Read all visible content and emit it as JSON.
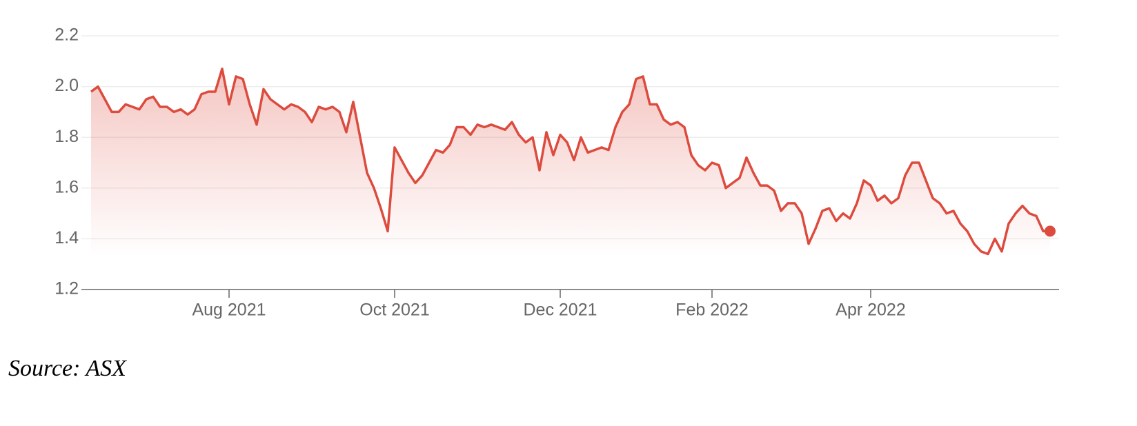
{
  "chart_data": {
    "type": "line",
    "source": "Source: ASX",
    "color": "#dd4b3e",
    "grid": true,
    "ylim": [
      1.2,
      2.2
    ],
    "yticks": [
      1.2,
      1.4,
      1.6,
      1.8,
      {
        "value": 2,
        "label": "2.0"
      },
      2.2
    ],
    "categories": [
      null,
      null,
      null,
      null,
      null,
      null,
      null,
      null,
      null,
      null,
      null,
      null,
      null,
      null,
      null,
      null,
      null,
      null,
      null,
      null,
      "Aug 2021",
      null,
      null,
      null,
      null,
      null,
      null,
      null,
      null,
      null,
      null,
      null,
      null,
      null,
      null,
      null,
      null,
      null,
      null,
      null,
      null,
      null,
      null,
      null,
      "Oct 2021",
      null,
      null,
      null,
      null,
      null,
      null,
      null,
      null,
      null,
      null,
      null,
      null,
      null,
      null,
      null,
      null,
      null,
      null,
      null,
      null,
      null,
      null,
      null,
      "Dec 2021",
      null,
      null,
      null,
      null,
      null,
      null,
      null,
      null,
      null,
      null,
      null,
      null,
      null,
      null,
      null,
      null,
      null,
      null,
      null,
      null,
      null,
      "Feb 2022",
      null,
      null,
      null,
      null,
      null,
      null,
      null,
      null,
      null,
      null,
      null,
      null,
      null,
      null,
      null,
      null,
      null,
      null,
      null,
      null,
      null,
      null,
      "Apr 2022",
      null,
      null,
      null,
      null,
      null,
      null,
      null,
      null,
      null,
      null,
      null,
      null,
      null,
      null,
      null,
      null,
      null,
      null,
      null,
      null,
      null,
      null,
      null,
      null,
      null,
      null
    ],
    "values": [
      1.98,
      2.0,
      1.95,
      1.9,
      1.9,
      1.93,
      1.92,
      1.91,
      1.95,
      1.96,
      1.92,
      1.92,
      1.9,
      1.91,
      1.89,
      1.91,
      1.97,
      1.98,
      1.98,
      2.07,
      1.93,
      2.04,
      2.03,
      1.93,
      1.85,
      1.99,
      1.95,
      1.93,
      1.91,
      1.93,
      1.92,
      1.9,
      1.86,
      1.92,
      1.91,
      1.92,
      1.9,
      1.82,
      1.94,
      1.8,
      1.66,
      1.6,
      1.52,
      1.43,
      1.76,
      1.71,
      1.66,
      1.62,
      1.65,
      1.7,
      1.75,
      1.74,
      1.77,
      1.84,
      1.84,
      1.81,
      1.85,
      1.84,
      1.85,
      1.84,
      1.83,
      1.86,
      1.81,
      1.78,
      1.8,
      1.67,
      1.82,
      1.73,
      1.81,
      1.78,
      1.71,
      1.8,
      1.74,
      1.75,
      1.76,
      1.75,
      1.84,
      1.9,
      1.93,
      2.03,
      2.04,
      1.93,
      1.93,
      1.87,
      1.85,
      1.86,
      1.84,
      1.73,
      1.69,
      1.67,
      1.7,
      1.69,
      1.6,
      1.62,
      1.64,
      1.72,
      1.66,
      1.61,
      1.61,
      1.59,
      1.51,
      1.54,
      1.54,
      1.5,
      1.38,
      1.44,
      1.51,
      1.52,
      1.47,
      1.5,
      1.48,
      1.54,
      1.63,
      1.61,
      1.55,
      1.57,
      1.54,
      1.56,
      1.65,
      1.7,
      1.7,
      1.63,
      1.56,
      1.54,
      1.5,
      1.51,
      1.46,
      1.43,
      1.38,
      1.35,
      1.34,
      1.4,
      1.35,
      1.46,
      1.5,
      1.53,
      1.5,
      1.49,
      1.43,
      1.43
    ]
  }
}
